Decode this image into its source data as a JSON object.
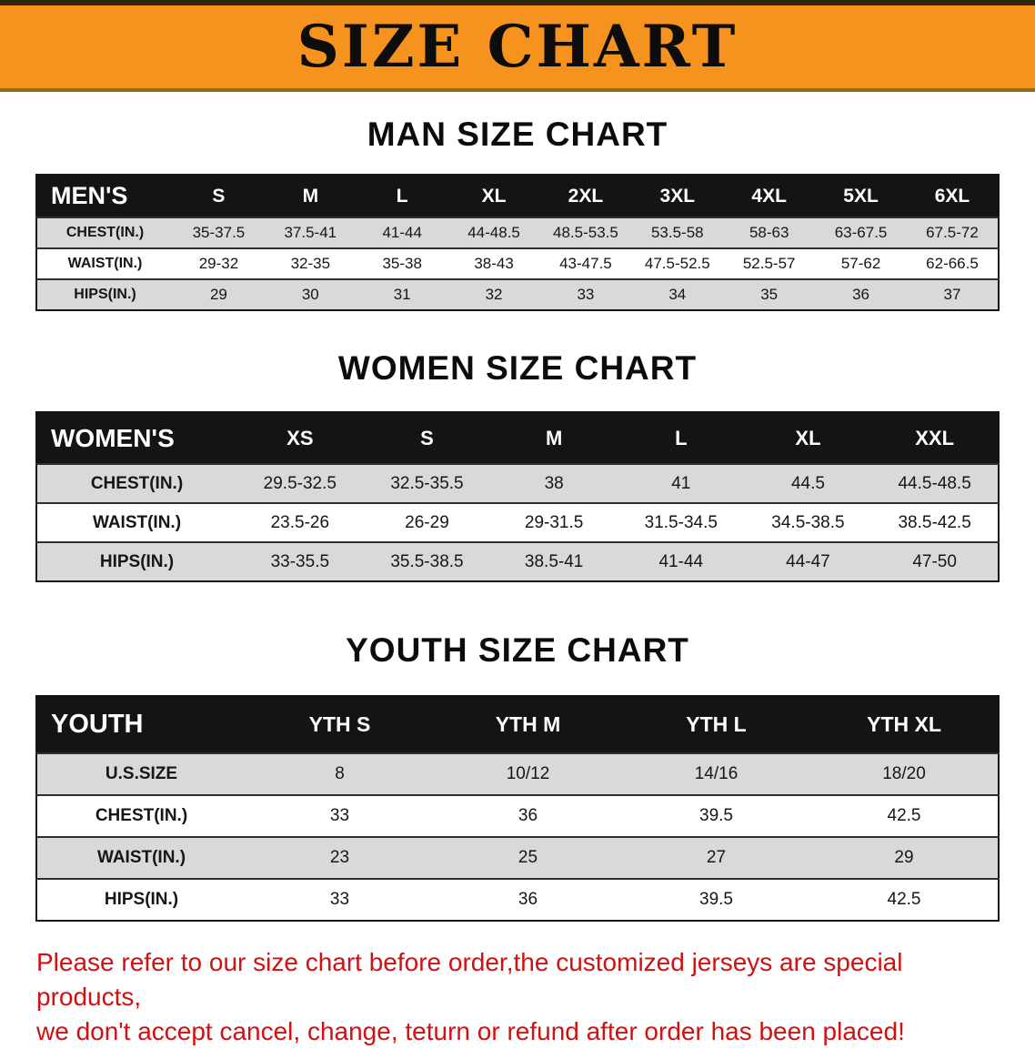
{
  "banner": {
    "title": "SIZE CHART",
    "bg_color": "#f6921e"
  },
  "sections": [
    {
      "heading": "MAN SIZE CHART",
      "table": {
        "corner_label": "MEN'S",
        "columns": [
          "S",
          "M",
          "L",
          "XL",
          "2XL",
          "3XL",
          "4XL",
          "5XL",
          "6XL"
        ],
        "rows": [
          {
            "label": "CHEST(IN.)",
            "values": [
              "35-37.5",
              "37.5-41",
              "41-44",
              "44-48.5",
              "48.5-53.5",
              "53.5-58",
              "58-63",
              "63-67.5",
              "67.5-72"
            ]
          },
          {
            "label": "WAIST(IN.)",
            "values": [
              "29-32",
              "32-35",
              "35-38",
              "38-43",
              "43-47.5",
              "47.5-52.5",
              "52.5-57",
              "57-62",
              "62-66.5"
            ]
          },
          {
            "label": "HIPS(IN.)",
            "values": [
              "29",
              "30",
              "31",
              "32",
              "33",
              "34",
              "35",
              "36",
              "37"
            ]
          }
        ]
      }
    },
    {
      "heading": "WOMEN SIZE CHART",
      "table": {
        "corner_label": "WOMEN'S",
        "columns": [
          "XS",
          "S",
          "M",
          "L",
          "XL",
          "XXL"
        ],
        "rows": [
          {
            "label": "CHEST(IN.)",
            "values": [
              "29.5-32.5",
              "32.5-35.5",
              "38",
              "41",
              "44.5",
              "44.5-48.5"
            ]
          },
          {
            "label": "WAIST(IN.)",
            "values": [
              "23.5-26",
              "26-29",
              "29-31.5",
              "31.5-34.5",
              "34.5-38.5",
              "38.5-42.5"
            ]
          },
          {
            "label": "HIPS(IN.)",
            "values": [
              "33-35.5",
              "35.5-38.5",
              "38.5-41",
              "41-44",
              "44-47",
              "47-50"
            ]
          }
        ]
      }
    },
    {
      "heading": "YOUTH SIZE CHART",
      "table": {
        "corner_label": "YOUTH",
        "columns": [
          "YTH S",
          "YTH M",
          "YTH L",
          "YTH XL"
        ],
        "rows": [
          {
            "label": "U.S.SIZE",
            "values": [
              "8",
              "10/12",
              "14/16",
              "18/20"
            ]
          },
          {
            "label": "CHEST(IN.)",
            "values": [
              "33",
              "36",
              "39.5",
              "42.5"
            ]
          },
          {
            "label": "WAIST(IN.)",
            "values": [
              "23",
              "25",
              "27",
              "29"
            ]
          },
          {
            "label": "HIPS(IN.)",
            "values": [
              "33",
              "36",
              "39.5",
              "42.5"
            ]
          }
        ]
      }
    }
  ],
  "footnote": {
    "line1": "Please refer to our size chart before order,the customized jerseys are special products,",
    "line2": "we don't accept cancel, change, teturn or refund after order has been placed!",
    "color": "#d11111"
  }
}
